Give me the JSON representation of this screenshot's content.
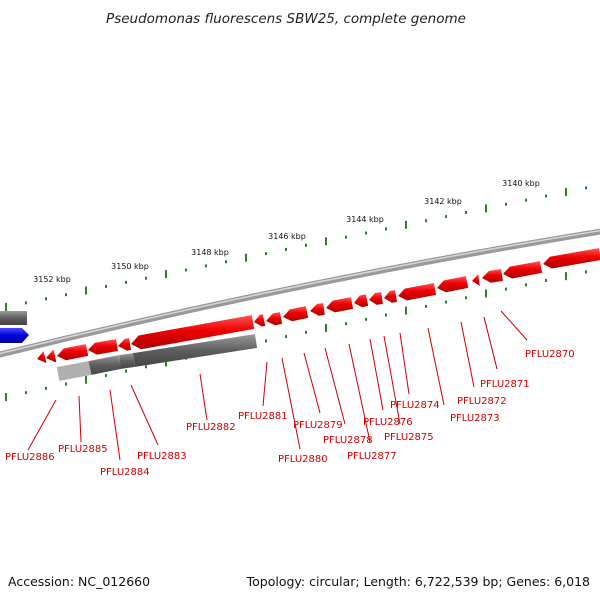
{
  "title": "Pseudomonas fluorescens SBW25, complete genome",
  "footer": {
    "accession": "Accession: NC_012660",
    "summary": "Topology: circular; Length: 6,722,539 bp; Genes: 6,018"
  },
  "scale_labels": [
    "3152 kbp",
    "3150 kbp",
    "3148 kbp",
    "3146 kbp",
    "3144 kbp",
    "3142 kbp",
    "3140 kbp"
  ],
  "gene_labels": [
    "PFLU2870",
    "PFLU2871",
    "PFLU2872",
    "PFLU2873",
    "PFLU2874",
    "PFLU2875",
    "PFLU2876",
    "PFLU2877",
    "PFLU2878",
    "PFLU2879",
    "PFLU2880",
    "PFLU2881",
    "PFLU2882",
    "PFLU2883",
    "PFLU2884",
    "PFLU2885",
    "PFLU2886"
  ],
  "colors": {
    "reverse_cds": "#ee0000",
    "forward_cds": "#0000dd",
    "gene_bar": "#666666",
    "backbone": "#888888",
    "ticks": "#228822",
    "labels": "#cc0000"
  }
}
